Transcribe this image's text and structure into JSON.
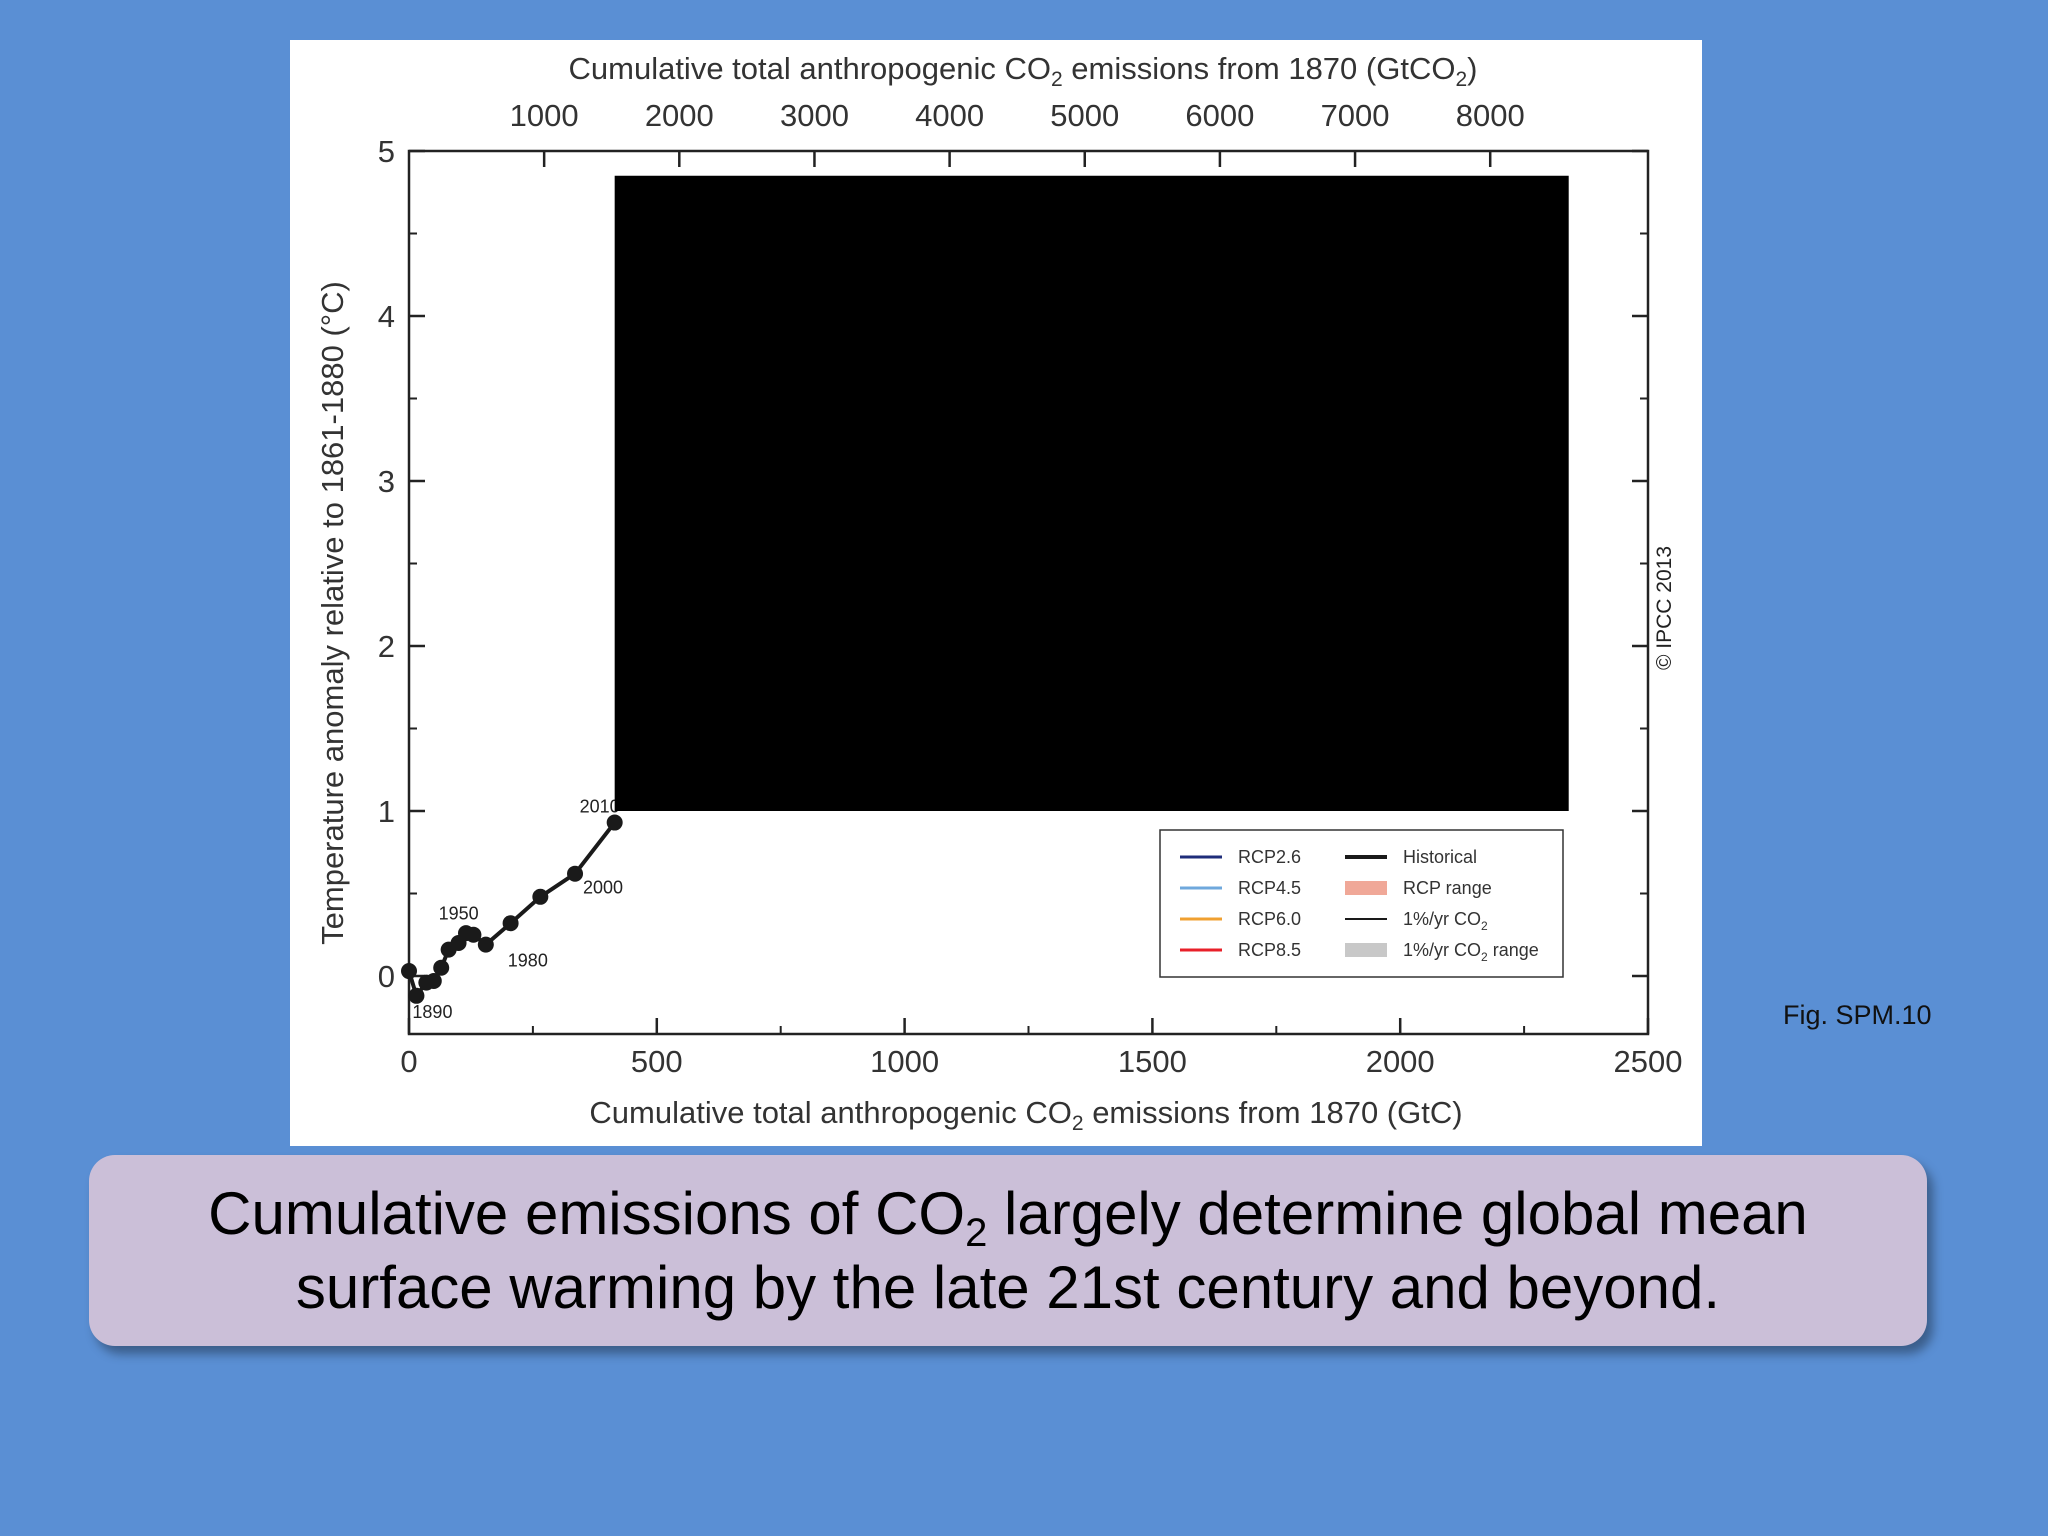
{
  "caption": {
    "line1_part1": "Cumulative emissions of CO",
    "line1_sub": "2",
    "line1_part2": " largely determine global mean",
    "line2": "surface warming by the late 21st century and beyond."
  },
  "figure_reference": "Fig. SPM.10",
  "copyright": "© IPCC 2013",
  "chart_data": {
    "type": "line",
    "top_axis_title": {
      "before": "Cumulative total anthropogenic CO",
      "sub": "2",
      "middle": " emissions from 1870 (GtCO",
      "sub2": "2",
      "after": ")"
    },
    "bottom_axis_title": {
      "before": "Cumulative total anthropogenic CO",
      "sub": "2",
      "after": " emissions from 1870 (GtC)"
    },
    "ylabel": "Temperature anomaly relative to 1861-1880 (°C)",
    "xlim": [
      0,
      2500
    ],
    "ylim": [
      -0.35,
      5
    ],
    "x_ticks": [
      "0",
      "500",
      "1000",
      "1500",
      "2000",
      "2500"
    ],
    "x_tick_values": [
      0,
      500,
      1000,
      1500,
      2000,
      2500
    ],
    "top_ticks": [
      "1000",
      "2000",
      "3000",
      "4000",
      "5000",
      "6000",
      "7000",
      "8000"
    ],
    "top_tick_values": [
      1000,
      2000,
      3000,
      4000,
      5000,
      6000,
      7000,
      8000
    ],
    "gtco2_per_gtc": 3.667,
    "y_ticks": [
      "0",
      "1",
      "2",
      "3",
      "4",
      "5"
    ],
    "y_tick_values": [
      0,
      1,
      2,
      3,
      4,
      5
    ],
    "redacted_region": {
      "x": [
        415,
        2340
      ],
      "y": [
        1.0,
        4.85
      ]
    },
    "series": [
      {
        "name": "Historical",
        "color": "#1a1a1a",
        "points": [
          {
            "x": 0,
            "y": 0.03
          },
          {
            "x": 15,
            "y": -0.12
          },
          {
            "x": 35,
            "y": -0.04
          },
          {
            "x": 50,
            "y": -0.03
          },
          {
            "x": 65,
            "y": 0.05
          },
          {
            "x": 80,
            "y": 0.16
          },
          {
            "x": 100,
            "y": 0.2
          },
          {
            "x": 115,
            "y": 0.26
          },
          {
            "x": 130,
            "y": 0.25
          },
          {
            "x": 155,
            "y": 0.19
          },
          {
            "x": 205,
            "y": 0.32
          },
          {
            "x": 265,
            "y": 0.48
          },
          {
            "x": 335,
            "y": 0.62
          },
          {
            "x": 415,
            "y": 0.93
          }
        ]
      }
    ],
    "year_labels": [
      {
        "text": "1890",
        "x": 15,
        "y": -0.12
      },
      {
        "text": "1950",
        "x": 80,
        "y": 0.16
      },
      {
        "text": "1980",
        "x": 155,
        "y": 0.19
      },
      {
        "text": "2000",
        "x": 335,
        "y": 0.62
      },
      {
        "text": "2010",
        "x": 415,
        "y": 0.93
      }
    ],
    "legend": {
      "placement": "bottom-right",
      "entries": [
        {
          "label": "RCP2.6",
          "color": "#1f2d7a",
          "style": "line"
        },
        {
          "label": "RCP4.5",
          "color": "#6fa8dc",
          "style": "line"
        },
        {
          "label": "RCP6.0",
          "color": "#f0a030",
          "style": "line"
        },
        {
          "label": "RCP8.5",
          "color": "#e8202a",
          "style": "line"
        },
        {
          "label": "Historical",
          "color": "#1a1a1a",
          "style": "thick-line"
        },
        {
          "label": "RCP range",
          "color": "#f0a898",
          "style": "patch"
        },
        {
          "label_before": "1%/yr CO",
          "label_sub": "2",
          "label_after": "",
          "color": "#1a1a1a",
          "style": "thin-line"
        },
        {
          "label_before": "1%/yr CO",
          "label_sub": "2",
          "label_after": " range",
          "color": "#c8c8c8",
          "style": "patch"
        }
      ]
    }
  }
}
